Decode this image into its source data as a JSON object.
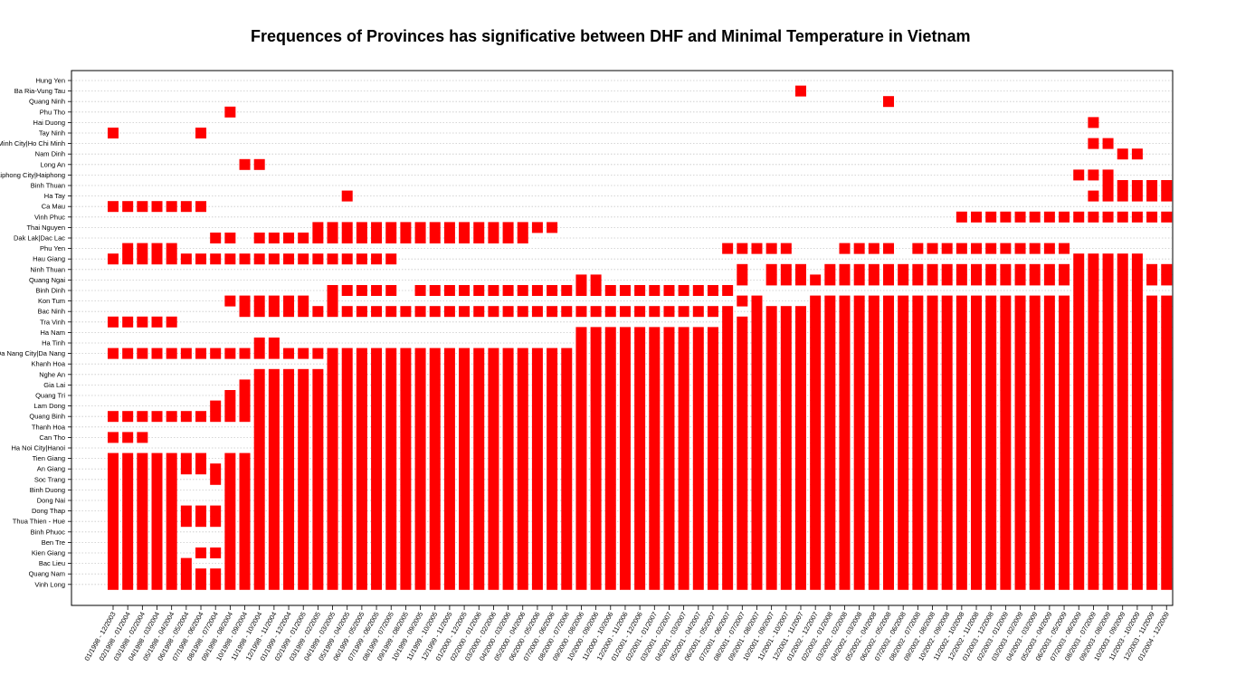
{
  "chart_data": {
    "type": "heatmap",
    "title": "Frequences of Provinces has significative between DHF and Minimal Temperature in Vietnam",
    "xlabel": "",
    "ylabel": "",
    "grid": true,
    "mark_color": "#ff0000",
    "x_labels": [
      "01/1998 - 12/2003",
      "02/1998 - 01/2004",
      "03/1998 - 02/2004",
      "04/1998 - 03/2004",
      "05/1998 - 04/2004",
      "06/1998 - 05/2004",
      "07/1998 - 06/2004",
      "08/1998 - 07/2004",
      "09/1998 - 08/2004",
      "10/1998 - 09/2004",
      "11/1998 - 10/2004",
      "12/1998 - 11/2004",
      "01/1999 - 12/2004",
      "02/1999 - 01/2005",
      "03/1999 - 02/2005",
      "04/1999 - 03/2005",
      "05/1999 - 04/2005",
      "06/1999 - 05/2005",
      "07/1999 - 06/2005",
      "08/1999 - 07/2005",
      "09/1999 - 08/2005",
      "10/1999 - 09/2005",
      "11/1999 - 10/2005",
      "12/1999 - 11/2005",
      "01/2000 - 12/2005",
      "02/2000 - 01/2006",
      "03/2000 - 02/2006",
      "04/2000 - 03/2006",
      "05/2000 - 04/2006",
      "06/2000 - 05/2006",
      "07/2000 - 06/2006",
      "08/2000 - 07/2006",
      "09/2000 - 08/2006",
      "10/2000 - 09/2006",
      "11/2000 - 10/2006",
      "12/2000 - 11/2006",
      "01/2001 - 12/2006",
      "02/2001 - 01/2007",
      "03/2001 - 02/2007",
      "04/2001 - 03/2007",
      "05/2001 - 04/2007",
      "06/2001 - 05/2007",
      "07/2001 - 06/2007",
      "08/2001 - 07/2007",
      "09/2001 - 08/2007",
      "10/2001 - 09/2007",
      "11/2001 - 10/2007",
      "12/2001 - 11/2007",
      "01/2002 - 12/2007",
      "02/2002 - 01/2008",
      "03/2002 - 02/2008",
      "04/2002 - 03/2008",
      "05/2002 - 04/2008",
      "06/2002 - 05/2008",
      "07/2002 - 06/2008",
      "08/2002 - 07/2008",
      "09/2002 - 08/2008",
      "10/2002 - 09/2008",
      "11/2002 - 10/2008",
      "12/2002 - 11/2008",
      "01/2003 - 12/2008",
      "02/2003 - 01/2009",
      "03/2003 - 02/2009",
      "04/2003 - 03/2009",
      "05/2003 - 04/2009",
      "06/2003 - 05/2009",
      "07/2003 - 06/2009",
      "08/2003 - 07/2009",
      "09/2003 - 08/2009",
      "10/2003 - 09/2009",
      "11/2003 - 10/2009",
      "12/2003 - 11/2009",
      "01/2004 - 12/2009"
    ],
    "y_labels_top_to_bottom": [
      "Hung Yen",
      "Ba Ria-Vung Tau",
      "Quang Ninh",
      "Phu Tho",
      "Hai Duong",
      "Tay Ninh",
      "Ho Chi Minh City|Ho Chi Minh",
      "Nam Dinh",
      "Long An",
      "Haiphong City|Haiphong",
      "Binh Thuan",
      "Ha Tay",
      "Ca Mau",
      "Vinh Phuc",
      "Thai Nguyen",
      "Dak Lak|Dac Lac",
      "Phu Yen",
      "Hau Giang",
      "Ninh Thuan",
      "Quang Ngai",
      "Binh Dinh",
      "Kon Tum",
      "Bac Ninh",
      "Tra Vinh",
      "Ha Nam",
      "Ha Tinh",
      "Da Nang City|Da Nang",
      "Khanh Hoa",
      "Nghe An",
      "Gia Lai",
      "Quang Tri",
      "Lam Dong",
      "Quang Binh",
      "Thanh Hoa",
      "Can Tho",
      "Ha Noi City|Hanoi",
      "Tien Giang",
      "An Giang",
      "Soc Trang",
      "Binh Duong",
      "Dong Nai",
      "Dong Thap",
      "Thua Thien - Hue",
      "Binh Phuoc",
      "Ben Tre",
      "Kien Giang",
      "Bac Lieu",
      "Quang Nam",
      "Vinh Long"
    ],
    "cells": {
      "Hung Yen": [],
      "Ba Ria-Vung Tau": [
        [
          47,
          47
        ]
      ],
      "Quang Ninh": [
        [
          53,
          53
        ]
      ],
      "Phu Tho": [
        [
          8,
          8
        ]
      ],
      "Hai Duong": [
        [
          67,
          67
        ]
      ],
      "Tay Ninh": [
        [
          0,
          0
        ],
        [
          6,
          6
        ]
      ],
      "Ho Chi Minh City|Ho Chi Minh": [
        [
          67,
          68
        ]
      ],
      "Nam Dinh": [
        [
          69,
          70
        ]
      ],
      "Long An": [
        [
          9,
          10
        ]
      ],
      "Haiphong City|Haiphong": [
        [
          66,
          68
        ]
      ],
      "Binh Thuan": [
        [
          68,
          72
        ]
      ],
      "Ha Tay": [
        [
          16,
          16
        ],
        [
          67,
          72
        ]
      ],
      "Ca Mau": [
        [
          0,
          6
        ]
      ],
      "Vinh Phuc": [
        [
          58,
          72
        ]
      ],
      "Thai Nguyen": [
        [
          14,
          30
        ]
      ],
      "Dak Lak|Dac Lac": [
        [
          7,
          8
        ],
        [
          10,
          28
        ]
      ],
      "Phu Yen": [
        [
          1,
          4
        ],
        [
          42,
          46
        ],
        [
          50,
          53
        ],
        [
          55,
          65
        ]
      ],
      "Hau Giang": [
        [
          0,
          19
        ],
        [
          66,
          70
        ]
      ],
      "Ninh Thuan": [
        [
          43,
          43
        ],
        [
          45,
          47
        ],
        [
          49,
          72
        ]
      ],
      "Quang Ngai": [
        [
          32,
          33
        ],
        [
          43,
          43
        ],
        [
          45,
          72
        ]
      ],
      "Binh Dinh": [
        [
          15,
          19
        ],
        [
          21,
          42
        ],
        [
          66,
          70
        ]
      ],
      "Kon Tum": [
        [
          8,
          13
        ],
        [
          15,
          15
        ],
        [
          43,
          44
        ],
        [
          48,
          72
        ]
      ],
      "Bac Ninh": [
        [
          9,
          42
        ],
        [
          44,
          72
        ]
      ],
      "Tra Vinh": [
        [
          0,
          4
        ],
        [
          42,
          72
        ]
      ],
      "Ha Nam": [
        [
          32,
          72
        ]
      ],
      "Ha Tinh": [
        [
          10,
          11
        ],
        [
          32,
          72
        ]
      ],
      "Da Nang City|Da Nang": [
        [
          0,
          6
        ],
        [
          7,
          72
        ]
      ],
      "Khanh Hoa": [
        [
          15,
          72
        ]
      ],
      "Nghe An": [
        [
          10,
          72
        ]
      ],
      "Gia Lai": [
        [
          9,
          72
        ]
      ],
      "Quang Tri": [
        [
          8,
          72
        ]
      ],
      "Lam Dong": [
        [
          7,
          72
        ]
      ],
      "Quang Binh": [
        [
          0,
          6
        ],
        [
          7,
          72
        ]
      ],
      "Thanh Hoa": [
        [
          10,
          72
        ]
      ],
      "Can Tho": [
        [
          0,
          2
        ],
        [
          10,
          72
        ]
      ],
      "Ha Noi City|Hanoi": [
        [
          10,
          72
        ]
      ],
      "Tien Giang": [
        [
          0,
          6
        ],
        [
          8,
          72
        ]
      ],
      "An Giang": [
        [
          0,
          72
        ]
      ],
      "Soc Trang": [
        [
          0,
          4
        ],
        [
          7,
          72
        ]
      ],
      "Binh Duong": [
        [
          0,
          4
        ],
        [
          8,
          72
        ]
      ],
      "Dong Nai": [
        [
          0,
          4
        ],
        [
          8,
          72
        ]
      ],
      "Dong Thap": [
        [
          0,
          72
        ]
      ],
      "Thua Thien - Hue": [
        [
          0,
          72
        ]
      ],
      "Binh Phuoc": [
        [
          0,
          4
        ],
        [
          8,
          72
        ]
      ],
      "Ben Tre": [
        [
          0,
          4
        ],
        [
          8,
          72
        ]
      ],
      "Kien Giang": [
        [
          0,
          4
        ],
        [
          6,
          72
        ]
      ],
      "Bac Lieu": [
        [
          0,
          5
        ],
        [
          8,
          72
        ]
      ],
      "Quang Nam": [
        [
          0,
          72
        ]
      ],
      "Vinh Long": [
        [
          0,
          72
        ]
      ]
    }
  }
}
